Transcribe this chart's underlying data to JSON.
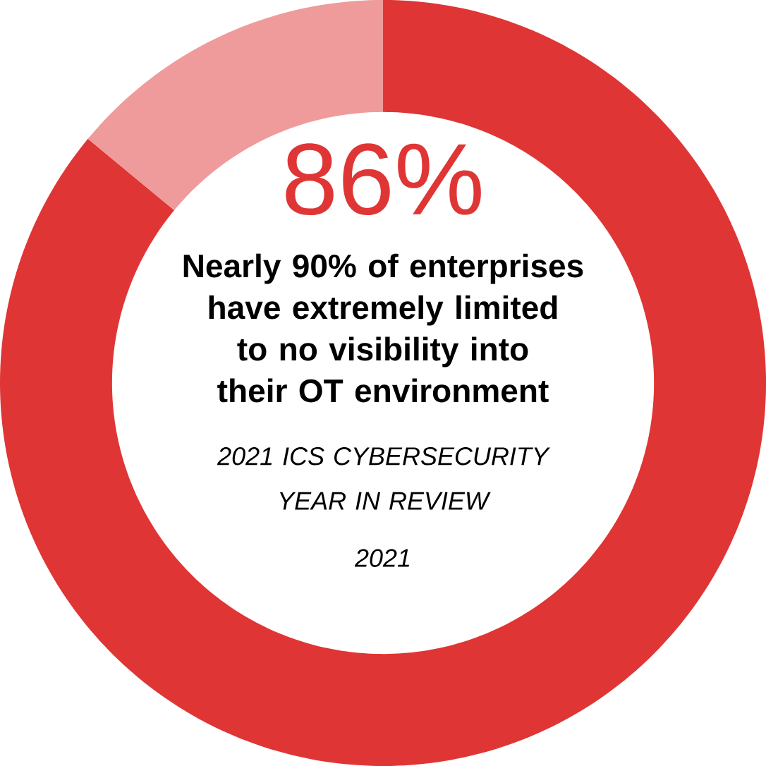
{
  "chart_data": {
    "type": "donut",
    "title": "86%",
    "subtitle": "Nearly 90% of enterprises have extremely limited to no visibility into their OT environment",
    "categories": [
      null,
      null
    ],
    "values": [
      86,
      14
    ],
    "colors": [
      "#e03535",
      "#ef9b9b"
    ],
    "annotations": [
      "2021 ICS CYBERSECURITY YEAR IN REVIEW",
      "2021"
    ]
  }
}
